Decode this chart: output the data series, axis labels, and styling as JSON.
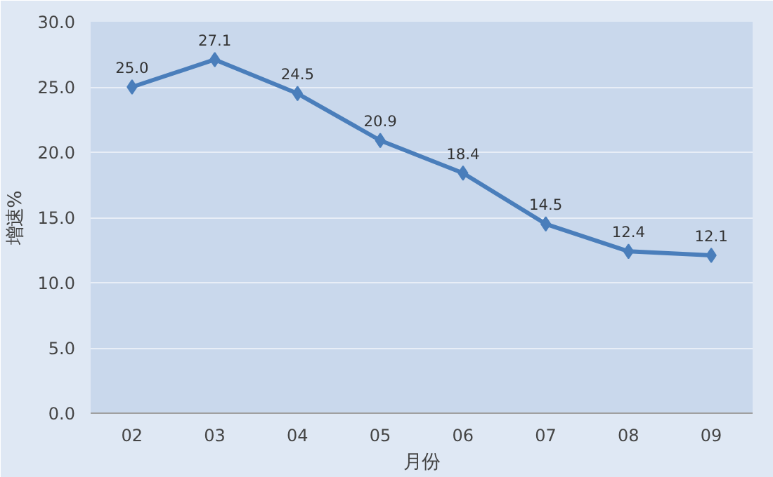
{
  "chart_data": {
    "type": "line",
    "xlabel": "月份",
    "ylabel": "增速%",
    "categories": [
      "02",
      "03",
      "04",
      "05",
      "06",
      "07",
      "08",
      "09"
    ],
    "series": [
      {
        "color": "#4a7ebb",
        "values": [
          25.0,
          27.1,
          24.5,
          20.9,
          18.4,
          14.5,
          12.4,
          12.1
        ],
        "value_labels": [
          "25.0",
          "27.1",
          "24.5",
          "20.9",
          "18.4",
          "14.5",
          "12.4",
          "12.1"
        ]
      }
    ],
    "ylim": [
      0,
      30
    ],
    "yticks": [
      {
        "value": 0,
        "label": "0.0"
      },
      {
        "value": 5,
        "label": "5.0"
      },
      {
        "value": 10,
        "label": "10.0"
      },
      {
        "value": 15,
        "label": "15.0"
      },
      {
        "value": 20,
        "label": "20.0"
      },
      {
        "value": 25,
        "label": "25.0"
      },
      {
        "value": 30,
        "label": "30.0"
      }
    ],
    "grid": "y",
    "marker": "diamond",
    "line_style": "solid"
  }
}
